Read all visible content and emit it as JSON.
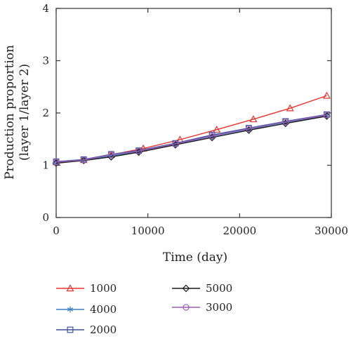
{
  "chart_data": {
    "type": "line",
    "xlabel": "Time (day)",
    "ylabel_line1": "Production proportion",
    "ylabel_line2": "(layer 1/layer 2)",
    "xlim": [
      0,
      30000
    ],
    "ylim": [
      0,
      4
    ],
    "xticks": [
      0,
      10000,
      20000,
      30000
    ],
    "yticks": [
      0,
      1,
      2,
      3,
      4
    ],
    "xtick_labels": [
      "0",
      "10000",
      "20000",
      "30000"
    ],
    "ytick_labels": [
      "0",
      "1",
      "2",
      "3",
      "4"
    ],
    "grid": false,
    "legend_position": "bottom",
    "series": [
      {
        "name": "1000",
        "color": "#e8322d",
        "marker": "triangle",
        "x": [
          0,
          3000,
          6000,
          9500,
          13500,
          17500,
          21500,
          25500,
          29500
        ],
        "y": [
          1.06,
          1.1,
          1.2,
          1.32,
          1.49,
          1.68,
          1.88,
          2.09,
          2.33
        ]
      },
      {
        "name": "4000",
        "color": "#3a7fc4",
        "marker": "asterisk",
        "x": [
          0,
          3000,
          6000,
          9000,
          13000,
          17000,
          21000,
          25000,
          29500
        ],
        "y": [
          1.05,
          1.1,
          1.18,
          1.26,
          1.4,
          1.55,
          1.69,
          1.82,
          1.95
        ]
      },
      {
        "name": "2000",
        "color": "#3e4f9e",
        "marker": "square",
        "x": [
          0,
          3000,
          6000,
          9000,
          13000,
          17000,
          21000,
          25000,
          29500
        ],
        "y": [
          1.07,
          1.11,
          1.21,
          1.28,
          1.42,
          1.58,
          1.71,
          1.84,
          1.97
        ]
      },
      {
        "name": "5000",
        "color": "#1a1a1a",
        "marker": "diamond",
        "x": [
          0,
          3000,
          6000,
          9000,
          13000,
          17000,
          21000,
          25000,
          29500
        ],
        "y": [
          1.04,
          1.09,
          1.16,
          1.25,
          1.39,
          1.53,
          1.67,
          1.8,
          1.94
        ]
      },
      {
        "name": "3000",
        "color": "#9b5fb5",
        "marker": "circle",
        "x": [
          0,
          3000,
          6000,
          9000,
          13000,
          17000,
          21000,
          25000,
          29500
        ],
        "y": [
          1.06,
          1.1,
          1.2,
          1.27,
          1.41,
          1.56,
          1.7,
          1.83,
          1.96
        ]
      }
    ]
  }
}
